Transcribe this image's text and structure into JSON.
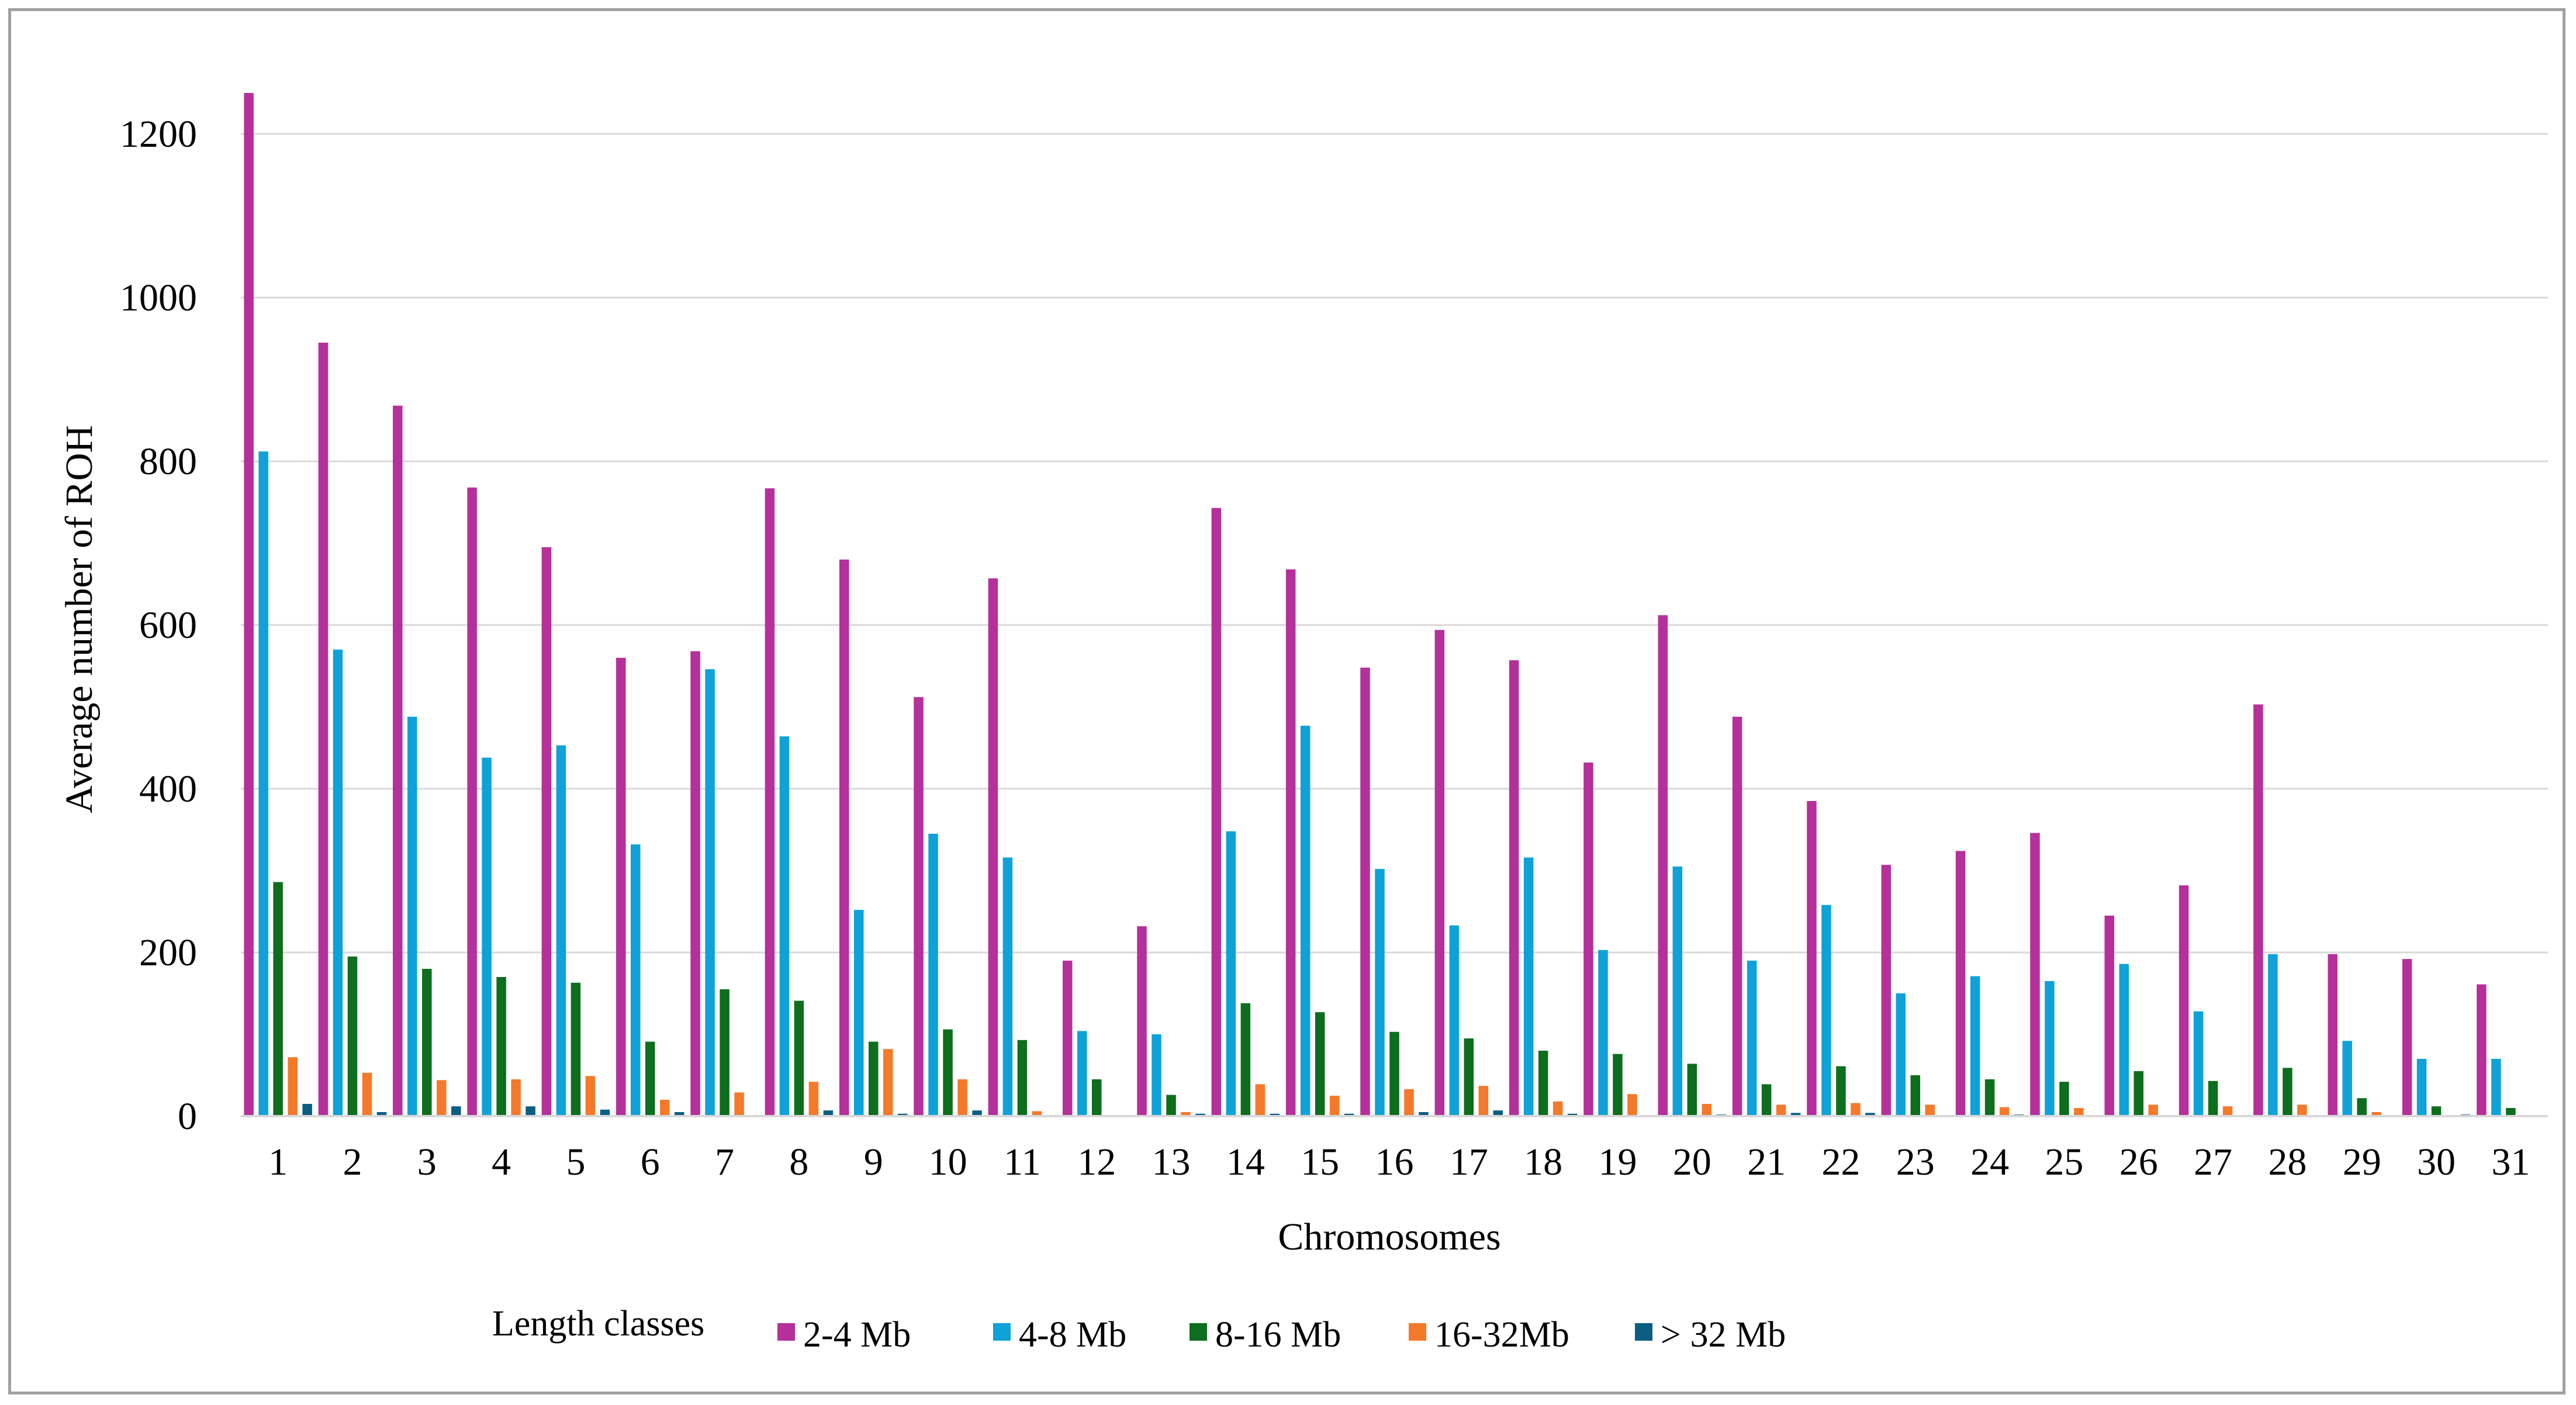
{
  "chart_data": {
    "type": "bar",
    "title": "",
    "xlabel": "Chromosomes",
    "ylabel": "Average number of ROH",
    "ylim": [
      0,
      1250
    ],
    "yticks": [
      0,
      200,
      400,
      600,
      800,
      1000,
      1200
    ],
    "grid": true,
    "legend_title": "Length classes",
    "legend_position": "bottom",
    "categories": [
      "1",
      "2",
      "3",
      "4",
      "5",
      "6",
      "7",
      "8",
      "9",
      "10",
      "11",
      "12",
      "13",
      "14",
      "15",
      "16",
      "17",
      "18",
      "19",
      "20",
      "21",
      "22",
      "23",
      "24",
      "25",
      "26",
      "27",
      "28",
      "29",
      "30",
      "31"
    ],
    "series": [
      {
        "name": "2-4 Mb",
        "color": "#b5309a",
        "values": [
          1250,
          945,
          868,
          768,
          695,
          560,
          568,
          767,
          680,
          512,
          657,
          190,
          232,
          743,
          668,
          548,
          594,
          557,
          432,
          612,
          488,
          385,
          307,
          324,
          346,
          245,
          282,
          503,
          198,
          192,
          161
        ]
      },
      {
        "name": "4-8 Mb",
        "color": "#0ea2d8",
        "values": [
          812,
          570,
          488,
          438,
          453,
          332,
          546,
          464,
          252,
          345,
          316,
          104,
          100,
          348,
          477,
          302,
          233,
          316,
          203,
          305,
          190,
          258,
          150,
          171,
          165,
          186,
          128,
          198,
          92,
          70,
          70
        ]
      },
      {
        "name": "8-16 Mb",
        "color": "#0d6e1e",
        "values": [
          286,
          195,
          180,
          170,
          163,
          91,
          155,
          141,
          91,
          106,
          93,
          45,
          26,
          138,
          127,
          103,
          95,
          80,
          76,
          64,
          39,
          61,
          50,
          45,
          42,
          55,
          43,
          59,
          22,
          12,
          10
        ]
      },
      {
        "name": "16-32Mb",
        "color": "#f5792a",
        "values": [
          72,
          53,
          44,
          45,
          49,
          20,
          29,
          42,
          82,
          45,
          6,
          0,
          5,
          39,
          25,
          33,
          37,
          18,
          27,
          15,
          14,
          16,
          14,
          11,
          10,
          14,
          12,
          14,
          5,
          0,
          0
        ]
      },
      {
        "name": "> 32 Mb",
        "color": "#0b5e82",
        "values": [
          15,
          5,
          12,
          12,
          8,
          5,
          0,
          7,
          3,
          7,
          0,
          0,
          3,
          3,
          3,
          5,
          7,
          3,
          0,
          2,
          4,
          4,
          0,
          2,
          0,
          0,
          0,
          0,
          0,
          2,
          0
        ]
      }
    ]
  }
}
